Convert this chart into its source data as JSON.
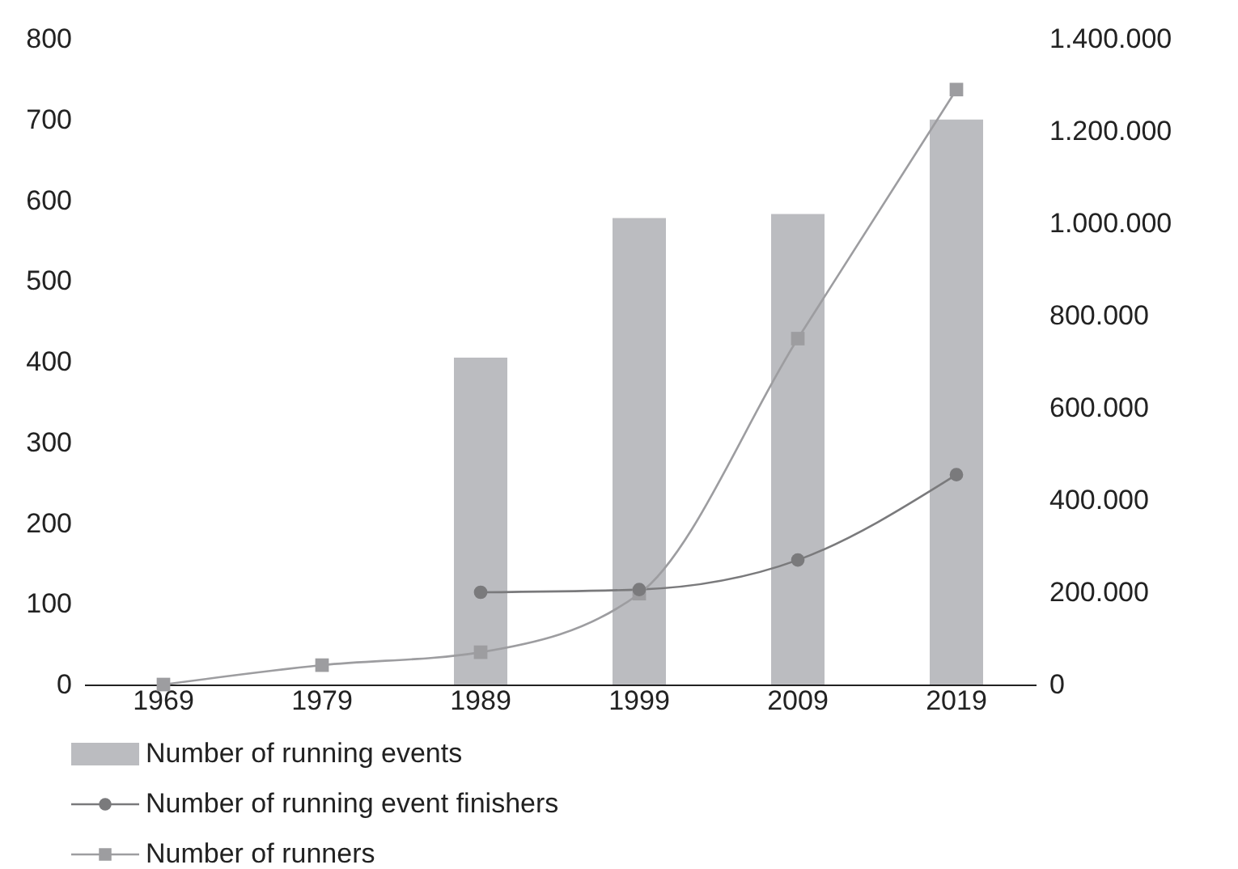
{
  "chart_data": {
    "type": "bar",
    "categories": [
      "1969",
      "1979",
      "1989",
      "1999",
      "2009",
      "2019"
    ],
    "ylim": [
      0,
      800
    ],
    "yticks": [
      0,
      100,
      200,
      300,
      400,
      500,
      600,
      700,
      800
    ],
    "y2lim": [
      0,
      1400000
    ],
    "y2ticks": [
      0,
      {
        "value": 200000,
        "label": "200.000"
      },
      {
        "value": 400000,
        "label": "400.000"
      },
      {
        "value": 600000,
        "label": "600.000"
      },
      {
        "value": 800000,
        "label": "800.000"
      },
      {
        "value": 1000000,
        "label": "1.000.000"
      },
      {
        "value": 1200000,
        "label": "1.200.000"
      },
      {
        "value": 1400000,
        "label": "1.400.000"
      }
    ],
    "legend": "bottom left",
    "grid": false,
    "series": [
      {
        "name": "Number of running events",
        "color": "#bbbcc0",
        "values": [
          null,
          null,
          405,
          578,
          583,
          700
        ]
      },
      {
        "name": "Number of running event finishers",
        "type": "line",
        "axis": "y2",
        "marker": "circle",
        "color": "#7a7a7c",
        "values": [
          null,
          null,
          200000,
          206000,
          270000,
          455000
        ]
      },
      {
        "name": "Number of runners",
        "type": "line",
        "axis": "y2",
        "marker": "square",
        "color": "#9d9da0",
        "values": [
          0,
          42000,
          70000,
          197000,
          750000,
          1290000
        ]
      }
    ]
  }
}
